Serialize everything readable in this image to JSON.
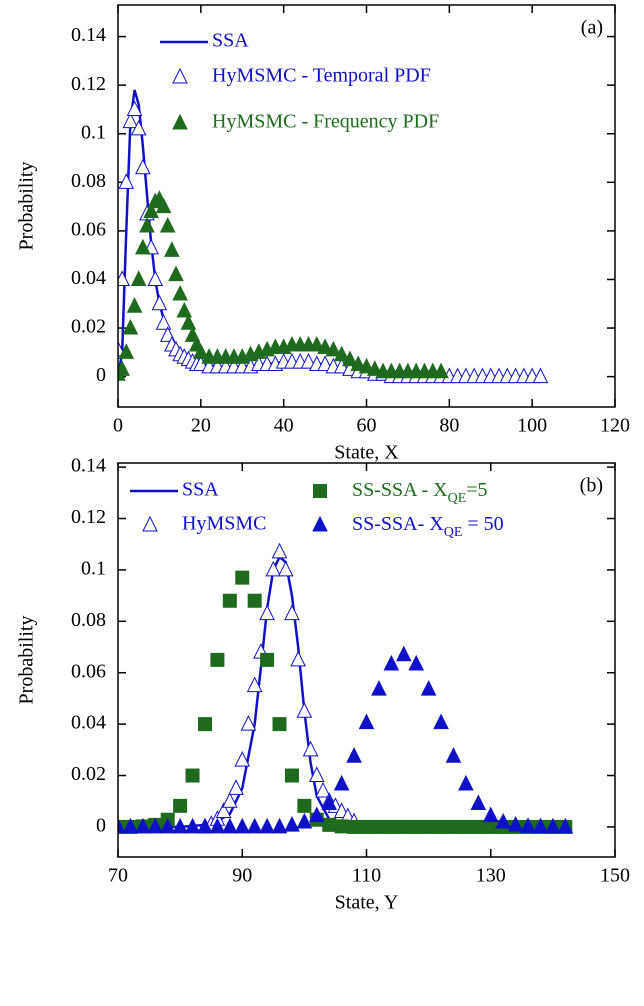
{
  "chart_data": [
    {
      "type": "scatter",
      "annotation": "(a)",
      "xlabel": "State, X",
      "ylabel": "Probability",
      "xlim": [
        0,
        120
      ],
      "ylim": [
        -0.0125,
        0.153
      ],
      "xticks": [
        0,
        20,
        40,
        60,
        80,
        100,
        120
      ],
      "yticks": [
        0,
        0.02,
        0.04,
        0.06,
        0.08,
        0.1,
        0.12,
        0.14
      ],
      "series": [
        {
          "name": "SSA",
          "color": "#1010c8",
          "style": "line",
          "x": [
            0,
            1,
            2,
            3,
            4,
            5,
            6,
            7,
            8,
            9,
            10,
            12,
            14,
            16,
            18,
            20,
            25,
            30,
            35,
            40,
            45,
            50,
            55,
            60,
            65,
            70,
            80,
            90,
            100
          ],
          "values": [
            0,
            0.01,
            0.06,
            0.105,
            0.118,
            0.112,
            0.095,
            0.075,
            0.055,
            0.04,
            0.03,
            0.018,
            0.012,
            0.008,
            0.006,
            0.005,
            0.004,
            0.004,
            0.005,
            0.006,
            0.006,
            0.005,
            0.003,
            0.002,
            0.001,
            0.0005,
            0,
            0,
            0
          ]
        },
        {
          "name": "HyMSMC - Temporal PDF",
          "color": "#1010c8",
          "style": "open-triangle",
          "x": [
            0,
            1,
            2,
            3,
            4,
            5,
            6,
            7,
            8,
            9,
            10,
            11,
            12,
            13,
            14,
            15,
            16,
            17,
            18,
            19,
            20,
            22,
            24,
            26,
            28,
            30,
            32,
            34,
            36,
            38,
            40,
            42,
            44,
            46,
            48,
            50,
            52,
            54,
            56,
            58,
            60,
            62,
            64,
            66,
            68,
            70,
            72,
            74,
            76,
            78,
            80,
            82,
            84,
            86,
            88,
            90,
            92,
            94,
            96,
            98,
            100,
            102
          ],
          "values": [
            0.011,
            0.04,
            0.08,
            0.105,
            0.11,
            0.102,
            0.086,
            0.067,
            0.053,
            0.04,
            0.03,
            0.022,
            0.017,
            0.013,
            0.011,
            0.009,
            0.008,
            0.007,
            0.006,
            0.005,
            0.005,
            0.004,
            0.004,
            0.004,
            0.004,
            0.004,
            0.004,
            0.005,
            0.005,
            0.005,
            0.006,
            0.006,
            0.006,
            0.006,
            0.005,
            0.005,
            0.004,
            0.004,
            0.003,
            0.002,
            0.002,
            0.001,
            0.001,
            0,
            0,
            0,
            0,
            0,
            0,
            0,
            0,
            0,
            0,
            0,
            0,
            0,
            0,
            0,
            0,
            0,
            0,
            0
          ]
        },
        {
          "name": "HyMSMC - Frequency PDF",
          "color": "#1e6b1e",
          "style": "triangle",
          "x": [
            0,
            1,
            2,
            3,
            4,
            5,
            6,
            7,
            8,
            9,
            10,
            11,
            12,
            13,
            14,
            15,
            16,
            17,
            18,
            19,
            20,
            22,
            24,
            26,
            28,
            30,
            32,
            34,
            36,
            38,
            40,
            42,
            44,
            46,
            48,
            50,
            52,
            54,
            56,
            58,
            60,
            62,
            64,
            66,
            68,
            70,
            72,
            74,
            76,
            78
          ],
          "values": [
            0.001,
            0.003,
            0.01,
            0.02,
            0.029,
            0.04,
            0.053,
            0.062,
            0.068,
            0.072,
            0.073,
            0.07,
            0.062,
            0.052,
            0.042,
            0.034,
            0.027,
            0.022,
            0.017,
            0.013,
            0.01,
            0.008,
            0.008,
            0.008,
            0.008,
            0.008,
            0.009,
            0.01,
            0.011,
            0.012,
            0.012,
            0.013,
            0.013,
            0.013,
            0.013,
            0.012,
            0.011,
            0.009,
            0.007,
            0.005,
            0.004,
            0.003,
            0.002,
            0.002,
            0.002,
            0.002,
            0.002,
            0.002,
            0.002,
            0.002
          ]
        }
      ]
    },
    {
      "type": "scatter",
      "annotation": "(b)",
      "xlabel": "State, Y",
      "ylabel": "Probability",
      "xlim": [
        70,
        150
      ],
      "ylim": [
        -0.0117,
        0.1416
      ],
      "xticks": [
        70,
        90,
        110,
        130,
        150
      ],
      "yticks": [
        0,
        0.02,
        0.04,
        0.06,
        0.08,
        0.1,
        0.12,
        0.14
      ],
      "series": [
        {
          "name": "SSA",
          "color": "#1010c8",
          "style": "line",
          "x": [
            70,
            80,
            85,
            88,
            90,
            92,
            93,
            94,
            95,
            96,
            97,
            98,
            99,
            100,
            101,
            102,
            104,
            106,
            110,
            120,
            130,
            140
          ],
          "values": [
            0,
            0,
            0.001,
            0.005,
            0.015,
            0.04,
            0.062,
            0.085,
            0.1,
            0.105,
            0.103,
            0.09,
            0.07,
            0.045,
            0.025,
            0.012,
            0.003,
            0.001,
            0,
            0,
            0,
            0
          ]
        },
        {
          "name": "HyMSMC",
          "color": "#1010c8",
          "style": "open-triangle",
          "x": [
            84,
            85,
            86,
            87,
            88,
            89,
            90,
            91,
            92,
            93,
            94,
            95,
            96,
            97,
            98,
            99,
            100,
            101,
            102,
            103,
            104,
            105,
            106,
            107,
            108
          ],
          "values": [
            0,
            0.001,
            0.003,
            0.006,
            0.01,
            0.015,
            0.026,
            0.04,
            0.055,
            0.068,
            0.083,
            0.1,
            0.107,
            0.1,
            0.083,
            0.065,
            0.045,
            0.03,
            0.02,
            0.014,
            0.01,
            0.008,
            0.006,
            0.004,
            0.002
          ]
        },
        {
          "name": [
            "SS-SSA - X",
            "QE",
            "=5"
          ],
          "color": "#1e6b1e",
          "style": "square",
          "x": [
            70,
            72,
            74,
            76,
            78,
            80,
            82,
            84,
            86,
            88,
            90,
            92,
            94,
            96,
            98,
            100,
            102,
            104,
            106,
            108,
            110,
            112,
            114,
            116,
            118,
            120,
            122,
            124,
            126,
            128,
            130,
            132,
            134,
            136,
            138,
            140,
            142
          ],
          "values": [
            0,
            0,
            0.0002,
            0.0008,
            0.0028,
            0.0082,
            0.02,
            0.04,
            0.065,
            0.088,
            0.097,
            0.088,
            0.065,
            0.04,
            0.02,
            0.0082,
            0.0028,
            0.0008,
            0.0002,
            0,
            0,
            0,
            0,
            0,
            0,
            0,
            0,
            0,
            0,
            0,
            0,
            0,
            0,
            0,
            0,
            0,
            0
          ]
        },
        {
          "name": [
            "SS-SSA- X",
            "QE",
            " = 50"
          ],
          "color": "#1010c8",
          "style": "triangle",
          "x": [
            70,
            72,
            74,
            76,
            78,
            80,
            82,
            84,
            86,
            88,
            90,
            92,
            94,
            96,
            98,
            100,
            102,
            104,
            106,
            108,
            110,
            112,
            114,
            116,
            118,
            120,
            122,
            124,
            126,
            128,
            130,
            132,
            134,
            136,
            138,
            140,
            142
          ],
          "values": [
            0,
            0,
            0,
            0,
            0,
            0,
            0,
            0,
            0,
            0,
            0,
            0,
            0,
            0,
            0.0007,
            0.0019,
            0.0044,
            0.0091,
            0.0167,
            0.0275,
            0.0406,
            0.0536,
            0.0634,
            0.067,
            0.0634,
            0.0536,
            0.0406,
            0.0275,
            0.0167,
            0.0091,
            0.0044,
            0.0019,
            0.0007,
            0.0002,
            0.0001,
            0,
            0
          ]
        }
      ]
    }
  ]
}
